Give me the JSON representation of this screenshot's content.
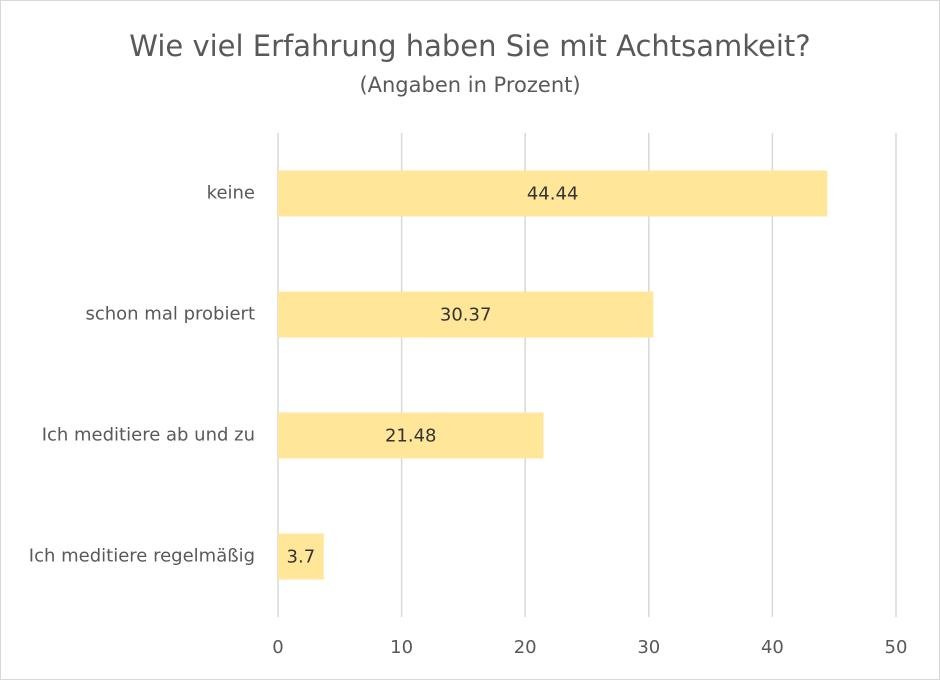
{
  "chart_data": {
    "type": "barh",
    "title": "Wie viel Erfahrung haben Sie mit Achtsamkeit?",
    "subtitle": "(Angaben in Prozent)",
    "categories": [
      "keine",
      "schon mal probiert",
      "Ich meditiere ab und zu",
      "Ich meditiere regelmäßig"
    ],
    "values": [
      44.44,
      30.37,
      21.48,
      3.7
    ],
    "color": "#ffe699",
    "xlim": [
      0,
      50
    ],
    "xticks": [
      0,
      10,
      20,
      30,
      40,
      50
    ],
    "grid": true
  }
}
